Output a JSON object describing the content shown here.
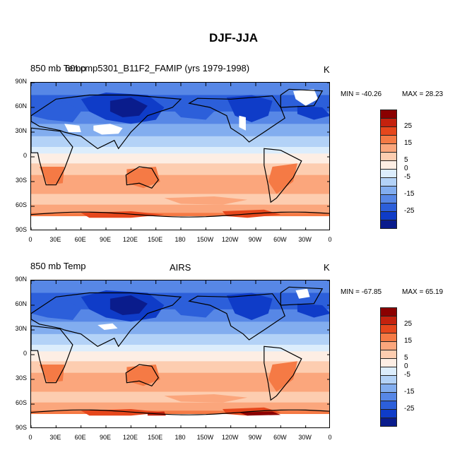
{
  "title": "DJF-JJA",
  "latitude_ticks": [
    "90N",
    "60N",
    "30N",
    "0",
    "30S",
    "60S",
    "90S"
  ],
  "longitude_ticks": [
    "0",
    "30E",
    "60E",
    "90E",
    "120E",
    "150E",
    "180",
    "150W",
    "120W",
    "90W",
    "60W",
    "30W",
    "0"
  ],
  "panels": [
    {
      "variable": "850 mb Temp",
      "source": "60Lcmp5301_B11F2_FAMIP (yrs 1979-1998)",
      "units": "K",
      "min_label": "MIN = -40.26",
      "max_label": "MAX =  28.23"
    },
    {
      "variable": "850 mb Temp",
      "source": "AIRS",
      "units": "K",
      "min_label": "MIN = -67.85",
      "max_label": "MAX =  65.19"
    }
  ],
  "colorbar": {
    "labels": [
      "25",
      "15",
      "5",
      "0",
      "-5",
      "-15",
      "-25"
    ],
    "colors": [
      "#8b0000",
      "#c4220e",
      "#e6471c",
      "#f57a45",
      "#fba67c",
      "#fdcdb0",
      "#fdeee4",
      "#dcedfc",
      "#b3d2f7",
      "#82adef",
      "#5787e6",
      "#2c5fda",
      "#0f3cc8",
      "#0a1c8c"
    ]
  }
}
